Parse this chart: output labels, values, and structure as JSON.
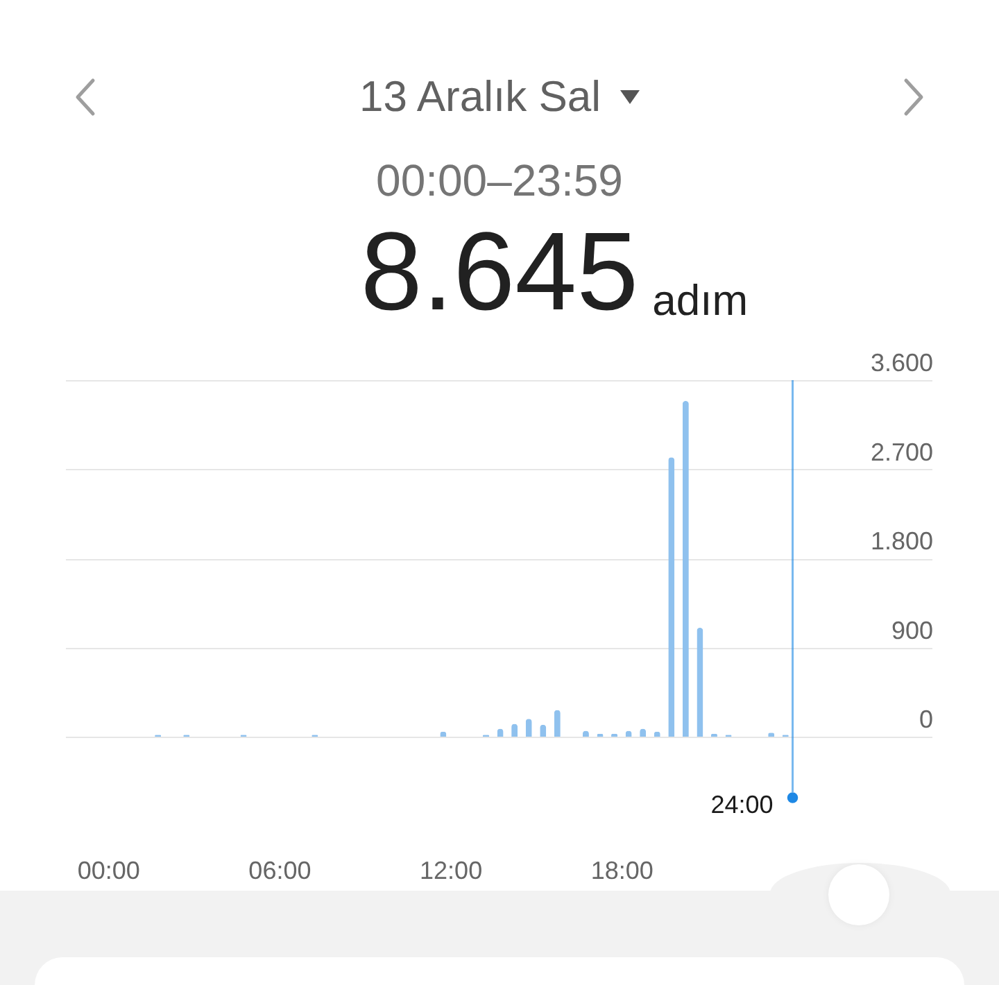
{
  "chart_data": {
    "type": "bar",
    "title": "13 Aralık Sal",
    "subtitle": "00:00–23:59",
    "annotations": [
      "8.645",
      "adım"
    ],
    "x": [
      1.75,
      2.75,
      4.75,
      7.25,
      11.75,
      13.25,
      13.75,
      14.25,
      14.75,
      15.25,
      15.75,
      16.75,
      17.25,
      17.75,
      18.25,
      18.75,
      19.25,
      19.75,
      20.25,
      20.75,
      21.25,
      21.75,
      23.25,
      23.75
    ],
    "values": [
      20,
      20,
      20,
      20,
      50,
      20,
      80,
      130,
      180,
      120,
      270,
      60,
      30,
      30,
      60,
      80,
      50,
      2820,
      3390,
      1100,
      30,
      20,
      40,
      20
    ],
    "color": "#8fc1ee",
    "xlim": [
      -1.5,
      28.9
    ],
    "xticks": [
      {
        "value": 0,
        "label": "00:00"
      },
      {
        "value": 6,
        "label": "06:00"
      },
      {
        "value": 12,
        "label": "12:00"
      },
      {
        "value": 18,
        "label": "18:00"
      }
    ],
    "ylim": [
      0,
      3600
    ],
    "yticks": [
      0,
      900,
      {
        "value": 1800,
        "label": "1.800"
      },
      {
        "value": 2700,
        "label": "2.700"
      },
      {
        "value": 3600,
        "label": "3.600"
      }
    ],
    "grid": "y",
    "ref_lines": [
      {
        "axis": "x",
        "value": 24,
        "label": "24:00",
        "color": "#1e88e5"
      }
    ]
  }
}
